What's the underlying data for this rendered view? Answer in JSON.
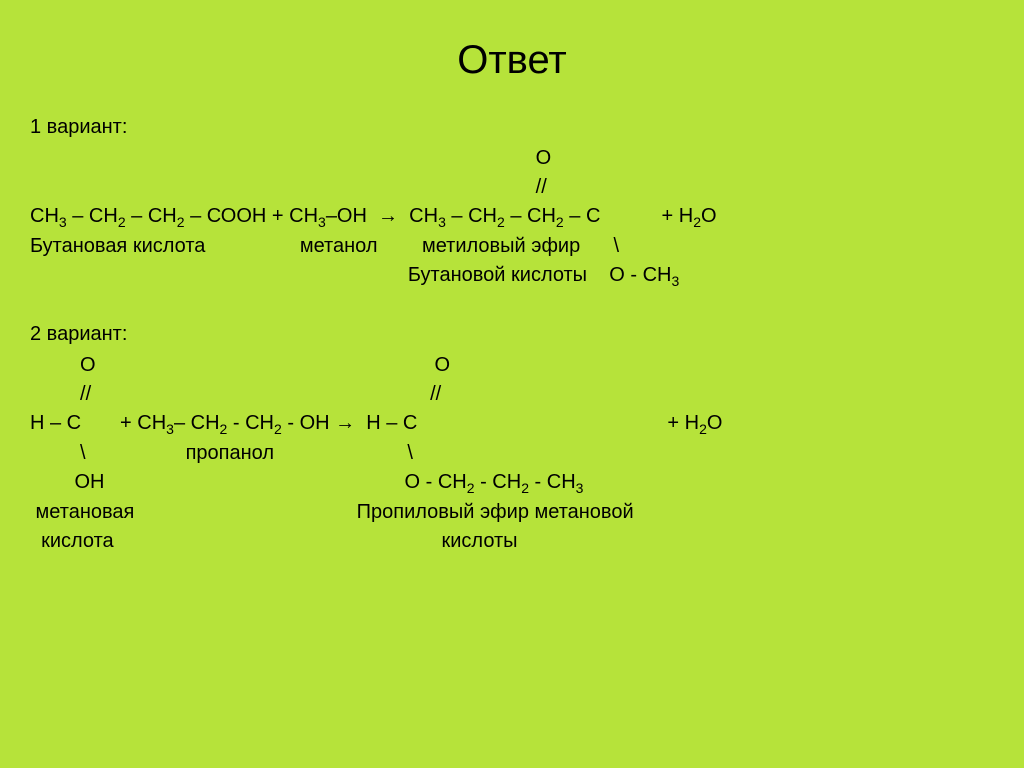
{
  "title": "Ответ",
  "variant1": {
    "label": "1 вариант:",
    "line1_right": "                                                                                           O",
    "line2_right": "                                                                                           //",
    "reaction_left": "СН₃ – СН₂ – СН₂ – СООН + СН₃–ОН  →  СН₃ – СН₂ – СН₂ – С           + Н₂О",
    "names_left": "Бутановая кислота                 метанол        метиловый эфир      \\",
    "names_right": "                                                                    Бутановой кислоты    О - СН₃"
  },
  "variant2": {
    "label": "2 вариант:",
    "line1": "         О                                                             О",
    "line2": "         //                                                             //",
    "reaction": "Н – С       + СН₃– СН₂ - СН₂ - ОН →  Н – С                                             + Н₂О",
    "line4": "         \\                  пропанол                        \\",
    "line5": "        ОН                                                      О - СН₂ - СН₂ - СН₃",
    "names1": " метановая                                        Пропиловый эфир метановой",
    "names2": "  кислота                                                           кислоты"
  }
}
